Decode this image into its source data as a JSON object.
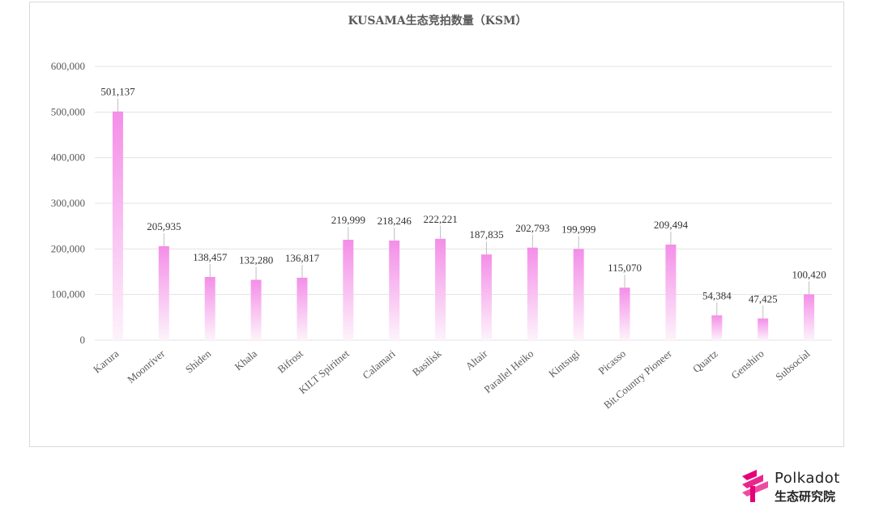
{
  "chart_data": {
    "type": "bar",
    "title": "KUSAMA生态竞拍数量（KSM）",
    "categories": [
      "Karura",
      "Moonriver",
      "Shiden",
      "Khala",
      "Bifrost",
      "KILT Spiritnet",
      "Calamari",
      "Basilisk",
      "Altair",
      "Parallel Heiko",
      "Kintsugi",
      "Picasso",
      "Bit.Country Pioneer",
      "Quartz",
      "Genshiro",
      "Subsocial"
    ],
    "values": [
      501137,
      205935,
      138457,
      132280,
      136817,
      219999,
      218246,
      222221,
      187835,
      202793,
      199999,
      115070,
      209494,
      54384,
      47425,
      100420
    ],
    "value_labels": [
      "501,137",
      "205,935",
      "138,457",
      "132,280",
      "136,817",
      "219,999",
      "218,246",
      "222,221",
      "187,835",
      "202,793",
      "199,999",
      "115,070",
      "209,494",
      "54,384",
      "47,425",
      "100,420"
    ],
    "ylim": [
      0,
      600000
    ],
    "yticks": [
      0,
      100000,
      200000,
      300000,
      400000,
      500000,
      600000
    ],
    "ytick_labels": [
      "0",
      "100,000",
      "200,000",
      "300,000",
      "400,000",
      "500,000",
      "600,000"
    ],
    "grid": true,
    "xlabel": "",
    "ylabel": "",
    "bar_color_top": "#f48ee8",
    "bar_color_bottom": "#fdf3fb"
  },
  "logo": {
    "line1": "Polkadot",
    "line2": "生态研究院",
    "color": "#e6007a"
  }
}
